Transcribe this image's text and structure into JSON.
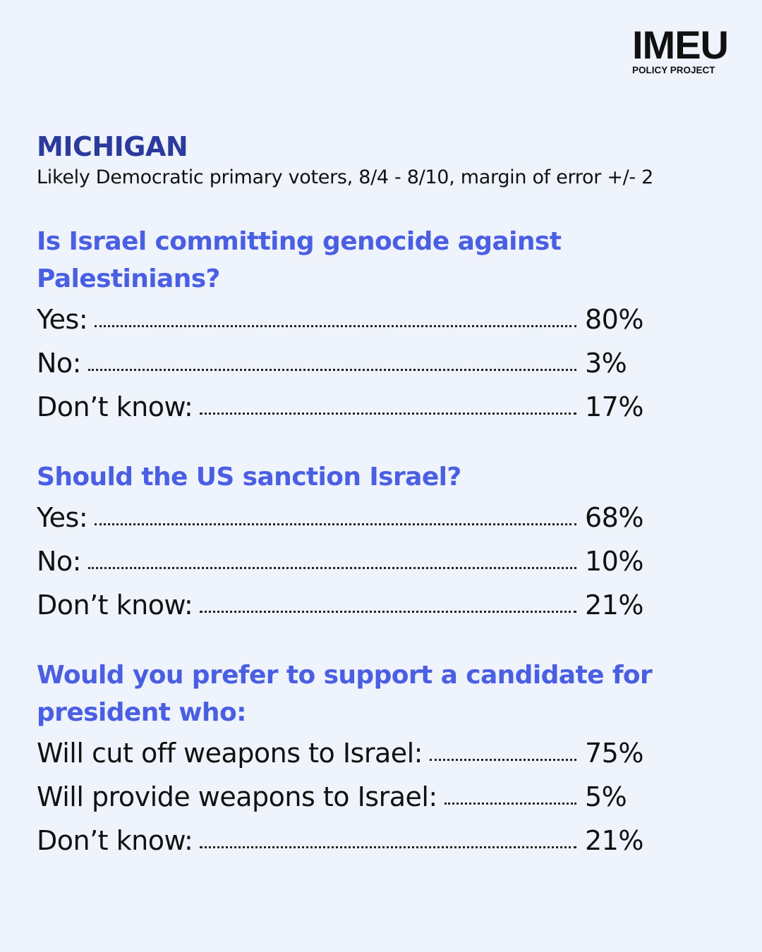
{
  "logo": {
    "name": "IMEU",
    "subtitle": "POLICY PROJECT"
  },
  "header": {
    "title": "MICHIGAN",
    "subtitle": "Likely Democratic primary voters, 8/4 - 8/10, margin of error +/- 2"
  },
  "questions": [
    {
      "question": "Is Israel committing genocide against Palestinians?",
      "answers": [
        {
          "label": "Yes:",
          "value": "80%"
        },
        {
          "label": "No:",
          "value": "3%"
        },
        {
          "label": "Don’t know:",
          "value": "17%"
        }
      ]
    },
    {
      "question": "Should the US sanction Israel?",
      "answers": [
        {
          "label": "Yes:",
          "value": "68%"
        },
        {
          "label": "No:",
          "value": "10%"
        },
        {
          "label": "Don’t know:",
          "value": "21%"
        }
      ]
    },
    {
      "question": "Would you prefer to support a candidate for president who:",
      "answers": [
        {
          "label": "Will cut off weapons to Israel:",
          "value": "75%"
        },
        {
          "label": "Will provide weapons to Israel:",
          "value": "5%"
        },
        {
          "label": "Don’t know:",
          "value": "21%"
        }
      ]
    }
  ]
}
